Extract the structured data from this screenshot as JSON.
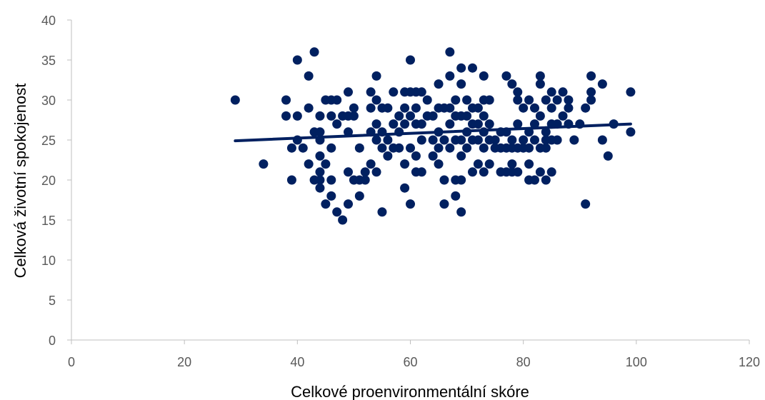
{
  "chart_data": {
    "type": "scatter",
    "title": "",
    "xlabel": "Celkové proenvironmentální skóre",
    "ylabel": "Celková životní spokojenost",
    "xlim": [
      0,
      120
    ],
    "ylim": [
      0,
      40
    ],
    "xticks": [
      0,
      20,
      40,
      60,
      80,
      100,
      120
    ],
    "yticks": [
      0,
      5,
      10,
      15,
      20,
      25,
      30,
      35,
      40
    ],
    "grid": false,
    "legend": "none",
    "colors": {
      "points": "#002060",
      "trendline": "#002060",
      "axis": "#bfbfbf",
      "tick_labels": "#595959"
    },
    "series": [
      {
        "points": [
          [
            29,
            30
          ],
          [
            34,
            22
          ],
          [
            38,
            30
          ],
          [
            38,
            28
          ],
          [
            39,
            24
          ],
          [
            39,
            20
          ],
          [
            40,
            35
          ],
          [
            40,
            28
          ],
          [
            40,
            25
          ],
          [
            41,
            24
          ],
          [
            42,
            33
          ],
          [
            42,
            29
          ],
          [
            42,
            22
          ],
          [
            43,
            36
          ],
          [
            43,
            26
          ],
          [
            43,
            20
          ],
          [
            44,
            28
          ],
          [
            44,
            26
          ],
          [
            44,
            25
          ],
          [
            44,
            23
          ],
          [
            44,
            21
          ],
          [
            44,
            20
          ],
          [
            44,
            19
          ],
          [
            45,
            30
          ],
          [
            45,
            22
          ],
          [
            45,
            17
          ],
          [
            46,
            28
          ],
          [
            46,
            24
          ],
          [
            46,
            20
          ],
          [
            46,
            18
          ],
          [
            46,
            30
          ],
          [
            47,
            30
          ],
          [
            47,
            27
          ],
          [
            47,
            16
          ],
          [
            48,
            28
          ],
          [
            48,
            15
          ],
          [
            49,
            31
          ],
          [
            49,
            28
          ],
          [
            49,
            26
          ],
          [
            49,
            21
          ],
          [
            49,
            17
          ],
          [
            50,
            29
          ],
          [
            50,
            28
          ],
          [
            50,
            20
          ],
          [
            51,
            24
          ],
          [
            51,
            20
          ],
          [
            51,
            18
          ],
          [
            52,
            21
          ],
          [
            52,
            20
          ],
          [
            53,
            31
          ],
          [
            53,
            29
          ],
          [
            53,
            26
          ],
          [
            53,
            22
          ],
          [
            54,
            33
          ],
          [
            54,
            30
          ],
          [
            54,
            27
          ],
          [
            54,
            25
          ],
          [
            54,
            21
          ],
          [
            55,
            29
          ],
          [
            55,
            26
          ],
          [
            55,
            24
          ],
          [
            55,
            16
          ],
          [
            56,
            29
          ],
          [
            56,
            25
          ],
          [
            56,
            23
          ],
          [
            57,
            31
          ],
          [
            57,
            24
          ],
          [
            57,
            27
          ],
          [
            58,
            28
          ],
          [
            58,
            26
          ],
          [
            58,
            24
          ],
          [
            59,
            31
          ],
          [
            59,
            29
          ],
          [
            59,
            27
          ],
          [
            59,
            22
          ],
          [
            59,
            19
          ],
          [
            60,
            35
          ],
          [
            60,
            31
          ],
          [
            60,
            28
          ],
          [
            60,
            24
          ],
          [
            60,
            17
          ],
          [
            61,
            31
          ],
          [
            61,
            29
          ],
          [
            61,
            27
          ],
          [
            61,
            23
          ],
          [
            61,
            21
          ],
          [
            62,
            31
          ],
          [
            62,
            27
          ],
          [
            62,
            25
          ],
          [
            62,
            21
          ],
          [
            63,
            30
          ],
          [
            63,
            28
          ],
          [
            64,
            28
          ],
          [
            64,
            25
          ],
          [
            64,
            23
          ],
          [
            65,
            32
          ],
          [
            65,
            29
          ],
          [
            65,
            26
          ],
          [
            65,
            24
          ],
          [
            65,
            22
          ],
          [
            66,
            29
          ],
          [
            66,
            25
          ],
          [
            66,
            20
          ],
          [
            66,
            17
          ],
          [
            67,
            36
          ],
          [
            67,
            33
          ],
          [
            67,
            29
          ],
          [
            67,
            27
          ],
          [
            67,
            24
          ],
          [
            68,
            30
          ],
          [
            68,
            28
          ],
          [
            68,
            25
          ],
          [
            68,
            20
          ],
          [
            68,
            18
          ],
          [
            69,
            34
          ],
          [
            69,
            32
          ],
          [
            69,
            28
          ],
          [
            69,
            25
          ],
          [
            69,
            23
          ],
          [
            69,
            20
          ],
          [
            69,
            16
          ],
          [
            70,
            30
          ],
          [
            70,
            28
          ],
          [
            70,
            26
          ],
          [
            70,
            24
          ],
          [
            71,
            34
          ],
          [
            71,
            29
          ],
          [
            71,
            27
          ],
          [
            71,
            25
          ],
          [
            71,
            21
          ],
          [
            72,
            29
          ],
          [
            72,
            27
          ],
          [
            72,
            25
          ],
          [
            72,
            22
          ],
          [
            73,
            33
          ],
          [
            73,
            30
          ],
          [
            73,
            28
          ],
          [
            73,
            26
          ],
          [
            73,
            24
          ],
          [
            73,
            21
          ],
          [
            74,
            30
          ],
          [
            74,
            27
          ],
          [
            74,
            25
          ],
          [
            74,
            22
          ],
          [
            75,
            25
          ],
          [
            75,
            24
          ],
          [
            76,
            26
          ],
          [
            76,
            24
          ],
          [
            76,
            21
          ],
          [
            77,
            33
          ],
          [
            77,
            26
          ],
          [
            77,
            24
          ],
          [
            77,
            21
          ],
          [
            78,
            32
          ],
          [
            78,
            25
          ],
          [
            78,
            24
          ],
          [
            78,
            22
          ],
          [
            78,
            21
          ],
          [
            79,
            31
          ],
          [
            79,
            30
          ],
          [
            79,
            27
          ],
          [
            79,
            24
          ],
          [
            79,
            21
          ],
          [
            80,
            29
          ],
          [
            80,
            25
          ],
          [
            80,
            24
          ],
          [
            81,
            30
          ],
          [
            81,
            26
          ],
          [
            81,
            24
          ],
          [
            81,
            22
          ],
          [
            81,
            20
          ],
          [
            82,
            29
          ],
          [
            82,
            27
          ],
          [
            82,
            25
          ],
          [
            82,
            20
          ],
          [
            83,
            33
          ],
          [
            83,
            32
          ],
          [
            83,
            28
          ],
          [
            83,
            24
          ],
          [
            83,
            21
          ],
          [
            84,
            30
          ],
          [
            84,
            26
          ],
          [
            84,
            25
          ],
          [
            84,
            24
          ],
          [
            84,
            20
          ],
          [
            85,
            31
          ],
          [
            85,
            29
          ],
          [
            85,
            27
          ],
          [
            85,
            25
          ],
          [
            85,
            21
          ],
          [
            86,
            30
          ],
          [
            86,
            27
          ],
          [
            86,
            25
          ],
          [
            87,
            31
          ],
          [
            87,
            28
          ],
          [
            88,
            30
          ],
          [
            88,
            29
          ],
          [
            88,
            27
          ],
          [
            89,
            25
          ],
          [
            90,
            27
          ],
          [
            91,
            29
          ],
          [
            91,
            17
          ],
          [
            92,
            33
          ],
          [
            92,
            31
          ],
          [
            92,
            30
          ],
          [
            94,
            32
          ],
          [
            94,
            25
          ],
          [
            95,
            23
          ],
          [
            96,
            27
          ],
          [
            99,
            31
          ],
          [
            99,
            26
          ]
        ]
      }
    ],
    "trendline": {
      "x": [
        29,
        99
      ],
      "y": [
        24.9,
        27.0
      ]
    }
  }
}
